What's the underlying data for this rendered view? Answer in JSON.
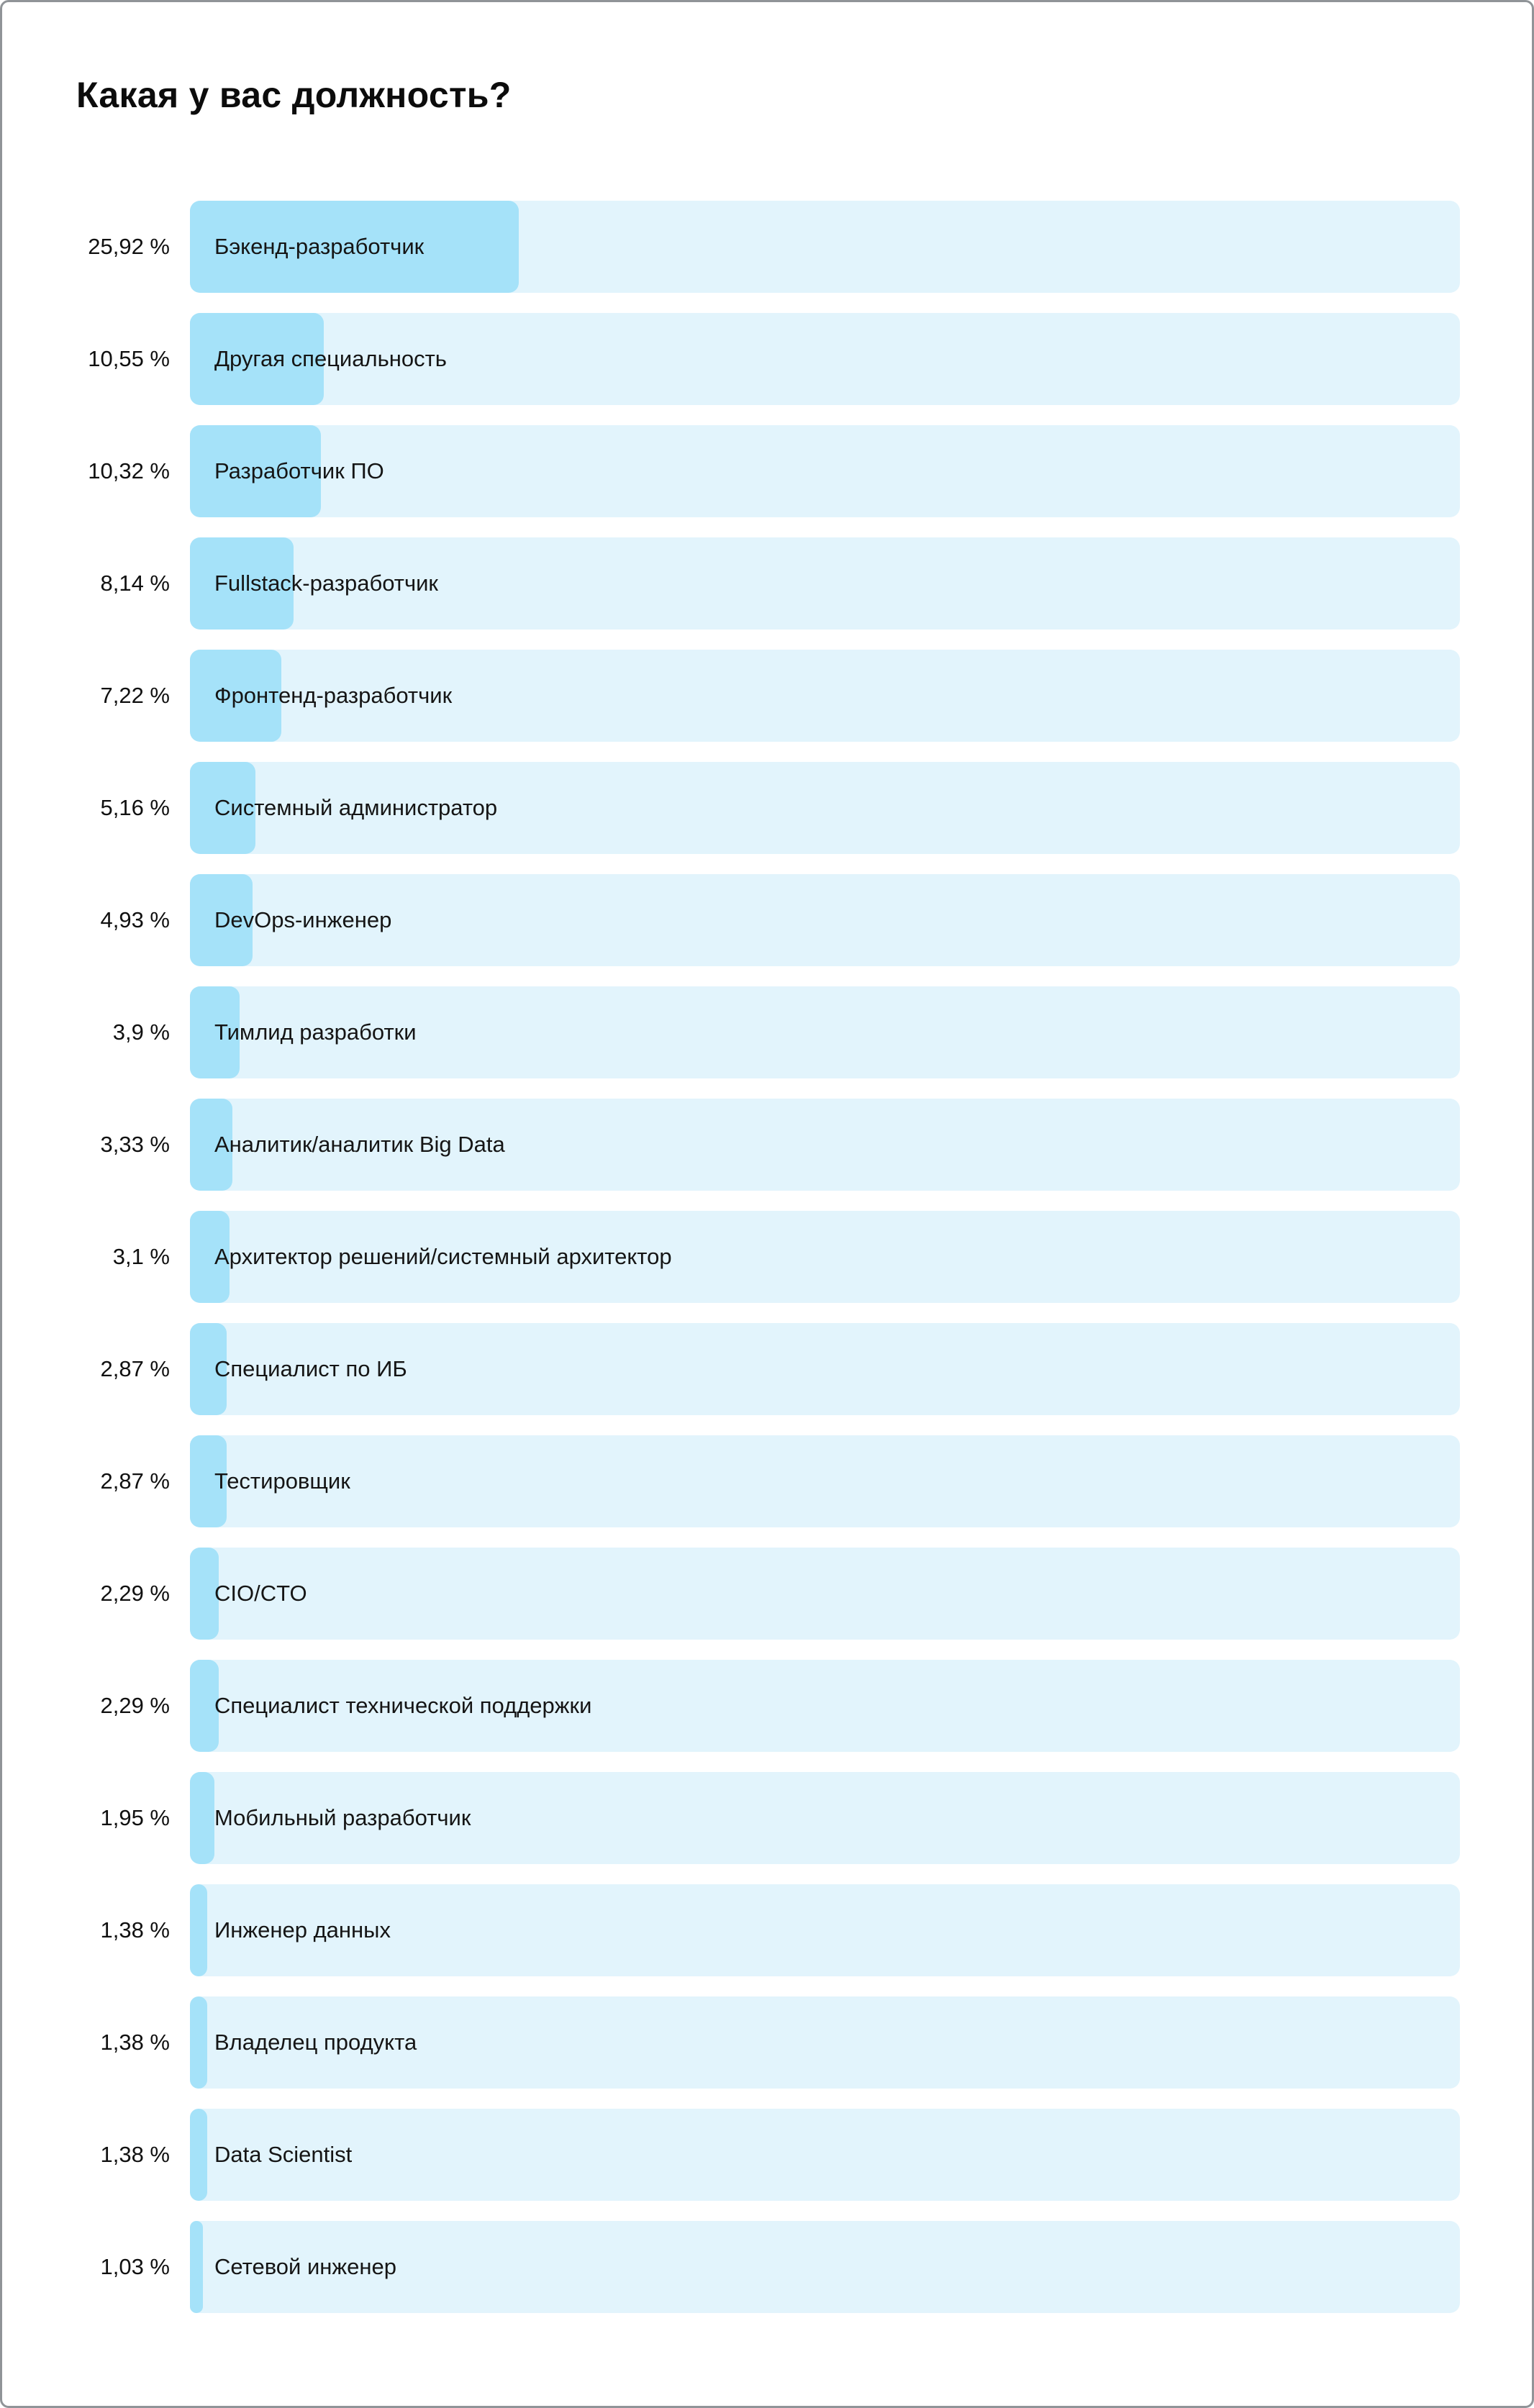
{
  "chart_data": {
    "type": "bar",
    "orientation": "horizontal",
    "title": "Какая у вас должность?",
    "categories": [
      "Бэкенд-разработчик",
      "Другая специальность",
      "Разработчик ПО",
      "Fullstack-разработчик",
      "Фронтенд-разработчик",
      "Системный администратор",
      "DevOps-инженер",
      "Тимлид разработки",
      "Аналитик/аналитик Big Data",
      "Архитектор решений/системный архитектор",
      "Специалист по ИБ",
      "Тестировщик",
      "CIO/CTO",
      "Специалист технической поддержки",
      "Мобильный разработчик",
      "Инженер данных",
      "Владелец продукта",
      "Data Scientist",
      "Сетевой инженер"
    ],
    "values": [
      25.92,
      10.55,
      10.32,
      8.14,
      7.22,
      5.16,
      4.93,
      3.9,
      3.33,
      3.1,
      2.87,
      2.87,
      2.29,
      2.29,
      1.95,
      1.38,
      1.38,
      1.38,
      1.03
    ],
    "value_labels": [
      "25,92 %",
      "10,55 %",
      "10,32 %",
      "8,14 %",
      "7,22 %",
      "5,16 %",
      "4,93 %",
      "3,9 %",
      "3,33 %",
      "3,1 %",
      "2,87 %",
      "2,87 %",
      "2,29 %",
      "2,29 %",
      "1,95 %",
      "1,38 %",
      "1,38 %",
      "1,38 %",
      "1,03 %"
    ],
    "xlim": [
      0,
      100
    ],
    "grid": false,
    "legend": false,
    "value_label_position": "left-of-bar",
    "category_label_position": "inside-bar",
    "colors": {
      "bar_fill": "#a5e2f9",
      "bar_track": "#e2f4fc",
      "text": "#101010",
      "page_border": "#909498"
    }
  }
}
